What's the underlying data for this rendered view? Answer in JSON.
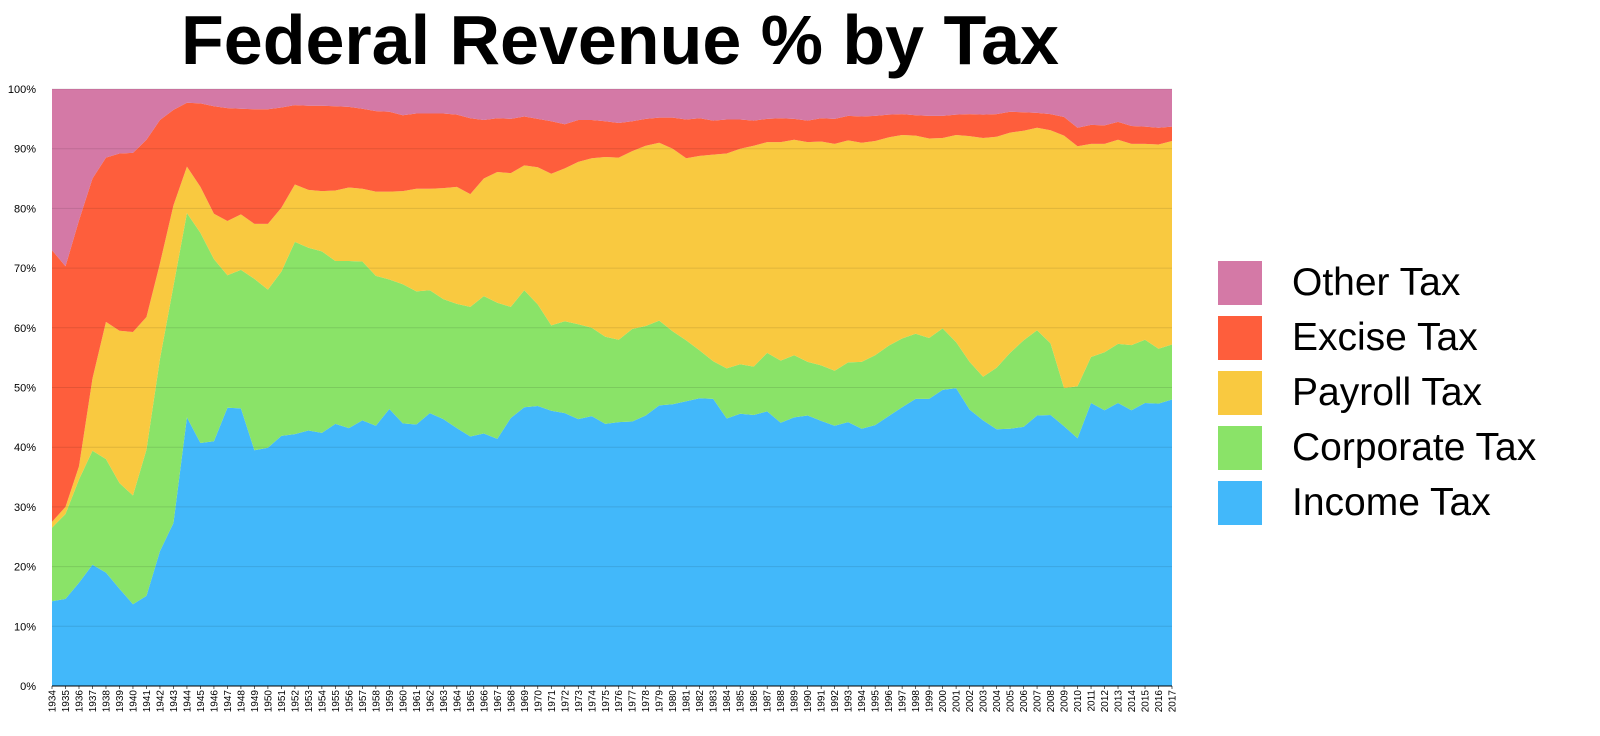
{
  "chart_data": {
    "type": "area",
    "stacked": true,
    "percent": true,
    "title": "Federal Revenue % by Tax",
    "xlabel": "",
    "ylabel": "",
    "ylim": [
      0,
      100
    ],
    "y_ticks": [
      "0%",
      "10%",
      "20%",
      "30%",
      "40%",
      "50%",
      "60%",
      "70%",
      "80%",
      "90%",
      "100%"
    ],
    "grid": true,
    "legend_position": "right",
    "x": [
      1934,
      1935,
      1936,
      1937,
      1938,
      1939,
      1940,
      1941,
      1942,
      1943,
      1944,
      1945,
      1946,
      1947,
      1948,
      1949,
      1950,
      1951,
      1952,
      1953,
      1954,
      1955,
      1956,
      1957,
      1958,
      1959,
      1960,
      1961,
      1962,
      1963,
      1964,
      1965,
      1966,
      1967,
      1968,
      1969,
      1970,
      1971,
      1972,
      1973,
      1974,
      1975,
      1976,
      1977,
      1978,
      1979,
      1980,
      1981,
      1982,
      1983,
      1984,
      1985,
      1986,
      1987,
      1988,
      1989,
      1990,
      1991,
      1992,
      1993,
      1994,
      1995,
      1996,
      1997,
      1998,
      1999,
      2000,
      2001,
      2002,
      2003,
      2004,
      2005,
      2006,
      2007,
      2008,
      2009,
      2010,
      2011,
      2012,
      2013,
      2014,
      2015,
      2016,
      2017
    ],
    "series": [
      {
        "name": "Income Tax",
        "color": "#42b8fa",
        "cumulative_top": [
          14.2,
          14.6,
          17.3,
          20.3,
          19.0,
          16.3,
          13.7,
          15.1,
          22.6,
          27.3,
          45.0,
          40.7,
          41.0,
          46.6,
          46.5,
          39.5,
          39.9,
          41.9,
          42.2,
          42.8,
          42.4,
          43.9,
          43.2,
          44.5,
          43.6,
          46.4,
          44.0,
          43.8,
          45.7,
          44.7,
          43.2,
          41.8,
          42.3,
          41.4,
          44.9,
          46.7,
          46.9,
          46.1,
          45.7,
          44.7,
          45.2,
          43.9,
          44.2,
          44.3,
          45.3,
          47.0,
          47.2,
          47.7,
          48.2,
          48.1,
          44.8,
          45.6,
          45.4,
          46.0,
          44.1,
          45.0,
          45.3,
          44.4,
          43.6,
          44.2,
          43.1,
          43.7,
          45.2,
          46.7,
          48.1,
          48.1,
          49.6,
          49.9,
          46.3,
          44.5,
          43.0,
          43.1,
          43.4,
          45.3,
          45.4,
          43.5,
          41.5,
          47.4,
          46.2,
          47.4,
          46.2,
          47.4,
          47.3,
          48.0
        ]
      },
      {
        "name": "Corporate Tax",
        "color": "#8ae368",
        "cumulative_top": [
          26.5,
          28.8,
          34.6,
          39.4,
          38.0,
          34.0,
          31.9,
          39.6,
          54.8,
          67.0,
          79.2,
          75.9,
          71.5,
          68.8,
          69.7,
          68.2,
          66.4,
          69.4,
          74.4,
          73.4,
          72.8,
          71.2,
          71.2,
          71.1,
          68.7,
          68.1,
          67.3,
          66.1,
          66.3,
          64.8,
          64.0,
          63.5,
          65.3,
          64.2,
          63.5,
          66.3,
          63.9,
          60.4,
          61.1,
          60.6,
          60.0,
          58.5,
          58.0,
          59.8,
          60.3,
          61.2,
          59.4,
          57.9,
          56.2,
          54.4,
          53.2,
          53.9,
          53.5,
          55.8,
          54.5,
          55.4,
          54.3,
          53.7,
          52.8,
          54.2,
          54.3,
          55.4,
          57.0,
          58.2,
          59.0,
          58.3,
          59.9,
          57.6,
          54.3,
          51.8,
          53.3,
          55.8,
          57.9,
          59.6,
          57.4,
          49.9,
          50.2,
          55.1,
          55.9,
          57.3,
          57.1,
          58.0,
          56.5,
          57.2
        ]
      },
      {
        "name": "Payroll Tax",
        "color": "#f9c940",
        "cumulative_top": [
          27.5,
          30.0,
          36.8,
          51.5,
          61.0,
          59.5,
          59.3,
          61.8,
          70.8,
          80.5,
          87.0,
          83.6,
          79.1,
          77.9,
          79.0,
          77.4,
          77.4,
          80.1,
          84.0,
          83.1,
          82.9,
          83.0,
          83.5,
          83.3,
          82.8,
          82.8,
          82.9,
          83.3,
          83.3,
          83.4,
          83.6,
          82.4,
          85.0,
          86.1,
          85.9,
          87.2,
          86.9,
          85.8,
          86.7,
          87.8,
          88.4,
          88.6,
          88.5,
          89.6,
          90.5,
          91.0,
          90.0,
          88.4,
          88.8,
          89.0,
          89.2,
          90.0,
          90.5,
          91.1,
          91.1,
          91.5,
          91.1,
          91.2,
          90.8,
          91.4,
          91.0,
          91.3,
          91.9,
          92.3,
          92.2,
          91.7,
          91.8,
          92.3,
          92.1,
          91.8,
          92.0,
          92.7,
          93.0,
          93.5,
          93.1,
          92.2,
          90.4,
          90.8,
          90.8,
          91.5,
          90.8,
          90.8,
          90.7,
          91.3
        ]
      },
      {
        "name": "Excise Tax",
        "color": "#fe5e3c",
        "cumulative_top": [
          73.0,
          70.3,
          78.0,
          85.0,
          88.5,
          89.2,
          89.3,
          91.5,
          94.8,
          96.5,
          97.7,
          97.6,
          97.1,
          96.8,
          96.7,
          96.6,
          96.6,
          96.9,
          97.3,
          97.2,
          97.2,
          97.1,
          97.0,
          96.7,
          96.3,
          96.2,
          95.6,
          95.9,
          95.9,
          95.9,
          95.7,
          95.1,
          94.8,
          95.1,
          95.0,
          95.4,
          95.0,
          94.6,
          94.1,
          94.8,
          94.8,
          94.6,
          94.3,
          94.6,
          95.0,
          95.2,
          95.2,
          94.9,
          95.1,
          94.7,
          94.9,
          94.9,
          94.7,
          95.0,
          95.1,
          95.0,
          94.7,
          95.1,
          95.0,
          95.5,
          95.4,
          95.5,
          95.7,
          95.8,
          95.6,
          95.5,
          95.5,
          95.7,
          95.8,
          95.7,
          95.8,
          96.2,
          96.1,
          96.0,
          95.8,
          95.3,
          93.5,
          94.0,
          93.9,
          94.5,
          93.8,
          93.7,
          93.5,
          93.7
        ]
      },
      {
        "name": "Other Tax",
        "color": "#d479a6",
        "cumulative_top": [
          100,
          100,
          100,
          100,
          100,
          100,
          100,
          100,
          100,
          100,
          100,
          100,
          100,
          100,
          100,
          100,
          100,
          100,
          100,
          100,
          100,
          100,
          100,
          100,
          100,
          100,
          100,
          100,
          100,
          100,
          100,
          100,
          100,
          100,
          100,
          100,
          100,
          100,
          100,
          100,
          100,
          100,
          100,
          100,
          100,
          100,
          100,
          100,
          100,
          100,
          100,
          100,
          100,
          100,
          100,
          100,
          100,
          100,
          100,
          100,
          100,
          100,
          100,
          100,
          100,
          100,
          100,
          100,
          100,
          100,
          100,
          100,
          100,
          100,
          100,
          100,
          100,
          100,
          100,
          100,
          100,
          100,
          100,
          100
        ]
      }
    ],
    "legend": [
      "Other Tax",
      "Excise Tax",
      "Payroll Tax",
      "Corporate Tax",
      "Income Tax"
    ]
  }
}
